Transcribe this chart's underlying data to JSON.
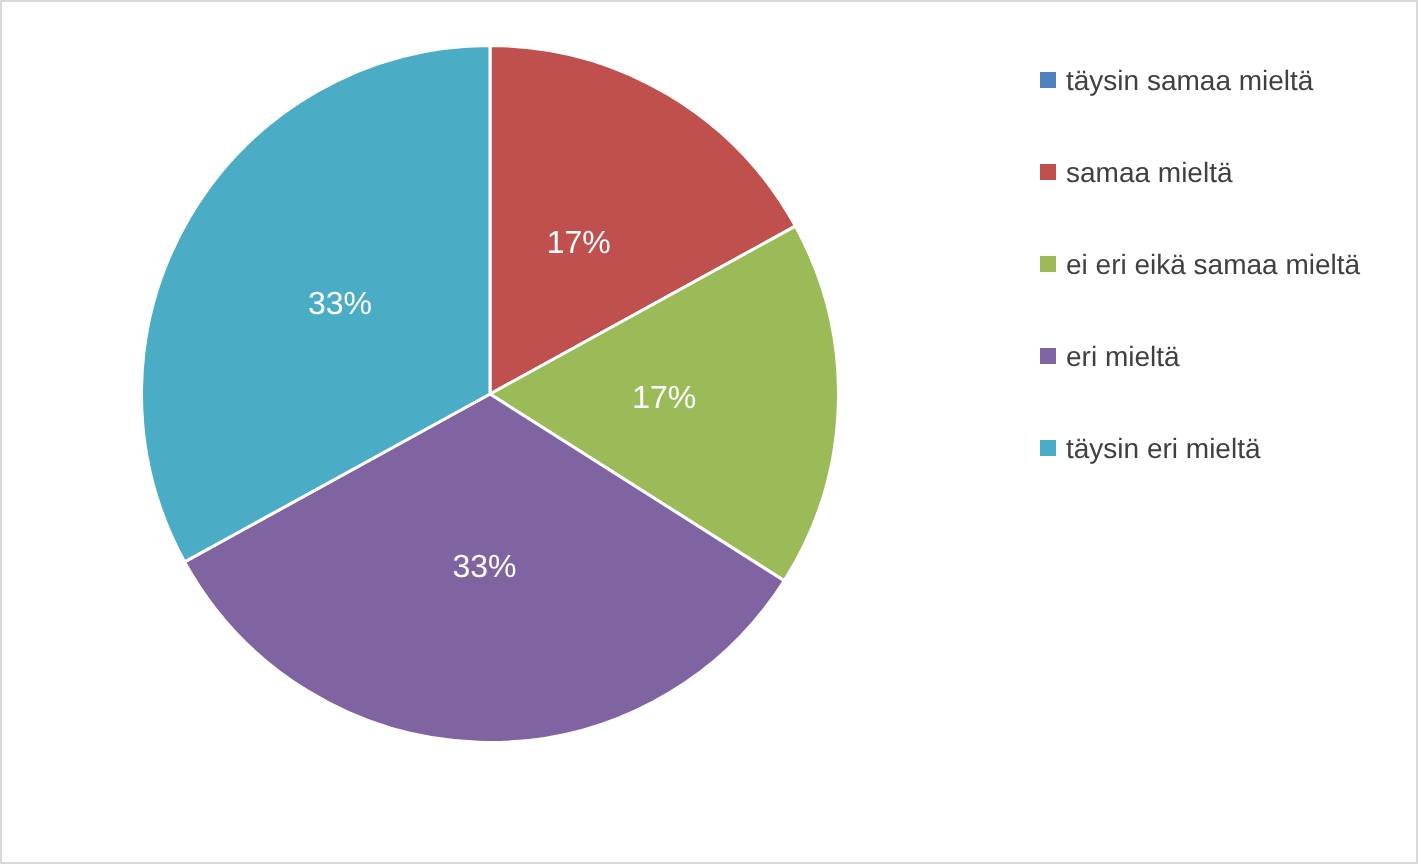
{
  "chart_data": {
    "type": "pie",
    "categories": [
      "täysin samaa mieltä",
      "samaa mieltä",
      "ei eri eikä samaa mieltä",
      "eri mieltä",
      "täysin eri mieltä"
    ],
    "values": [
      0,
      17,
      17,
      33,
      33
    ],
    "colors": [
      "#4f81bd",
      "#c0504d",
      "#9bbb59",
      "#8064a2",
      "#4bacc6"
    ],
    "value_labels": [
      null,
      "17%",
      "17%",
      "33%",
      "33%"
    ],
    "legend": "right"
  }
}
